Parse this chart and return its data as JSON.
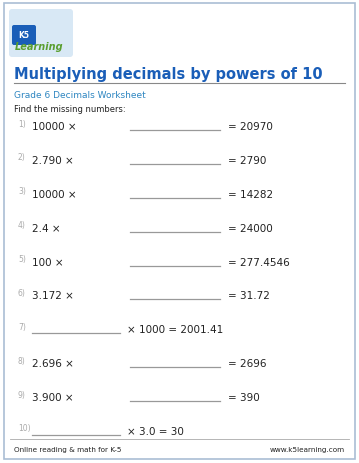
{
  "title": "Multiplying decimals by powers of 10",
  "subtitle": "Grade 6 Decimals Worksheet",
  "instruction": "Find the missing numbers:",
  "problems": [
    {
      "num": "1)",
      "left": "10000 ×",
      "right": "= 20970",
      "blank_pos": "middle"
    },
    {
      "num": "2)",
      "left": "2.790 ×",
      "right": "= 2790",
      "blank_pos": "middle"
    },
    {
      "num": "3)",
      "left": "10000 ×",
      "right": "= 14282",
      "blank_pos": "middle"
    },
    {
      "num": "4)",
      "left": "2.4 ×",
      "right": "= 24000",
      "blank_pos": "middle"
    },
    {
      "num": "5)",
      "left": "100 ×",
      "right": "= 277.4546",
      "blank_pos": "middle"
    },
    {
      "num": "6)",
      "left": "3.172 ×",
      "right": "= 31.72",
      "blank_pos": "middle"
    },
    {
      "num": "7)",
      "left": "",
      "right": "× 1000 = 2001.41",
      "blank_pos": "left"
    },
    {
      "num": "8)",
      "left": "2.696 ×",
      "right": "= 2696",
      "blank_pos": "middle"
    },
    {
      "num": "9)",
      "left": "3.900 ×",
      "right": "= 390",
      "blank_pos": "middle"
    },
    {
      "num": "10)",
      "left": "",
      "right": "× 3.0 = 30",
      "blank_pos": "left"
    }
  ],
  "footer_left": "Online reading & math for K-5",
  "footer_right": "www.k5learning.com",
  "title_color": "#1a5eb8",
  "subtitle_color": "#2e86c1",
  "border_color": "#aabdd4",
  "bg_color": "#ffffff",
  "text_color": "#222222",
  "line_color": "#999999",
  "num_color": "#aaaaaa",
  "logo_green": "#5a9e2f",
  "logo_blue": "#1a5eb8",
  "logo_bg": "#d8e8f5"
}
